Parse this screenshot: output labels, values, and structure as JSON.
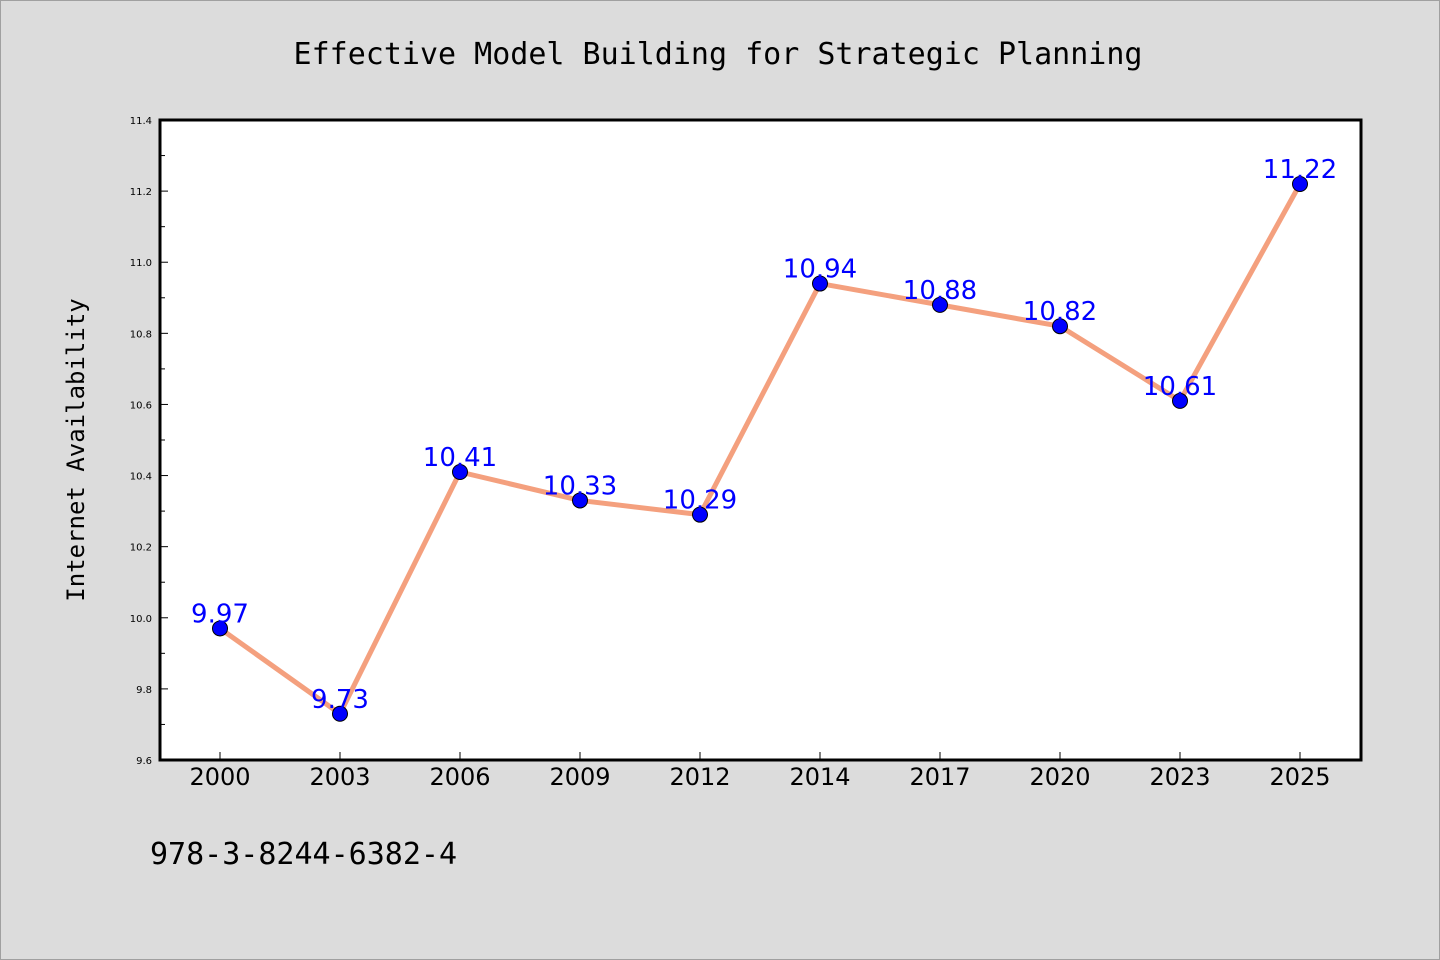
{
  "chart_data": {
    "type": "line",
    "title": "Effective Model Building for Strategic Planning",
    "xlabel": "",
    "ylabel": "Internet Availability",
    "categories": [
      "2000",
      "2003",
      "2006",
      "2009",
      "2012",
      "2014",
      "2017",
      "2020",
      "2023",
      "2025"
    ],
    "series": [
      {
        "values": [
          9.97,
          9.73,
          10.41,
          10.33,
          10.29,
          10.94,
          10.88,
          10.82,
          10.61,
          11.22
        ]
      }
    ],
    "data_labels": [
      "9.97",
      "9.73",
      "10.41",
      "10.33",
      "10.29",
      "10.94",
      "10.88",
      "10.82",
      "10.61",
      "11.22"
    ],
    "ylim": [
      9.6,
      11.4
    ],
    "yticks": [
      "9.6",
      "9.8",
      "10.0",
      "10.2",
      "10.4",
      "10.6",
      "10.8",
      "11.0",
      "11.2",
      "11.4"
    ],
    "grid": false,
    "legend": "none",
    "colors": {
      "line": "#f4a07e",
      "marker": "#0000ff",
      "label": "#0000ff",
      "background": "#dcdcdc",
      "plot_bg": "#ffffff"
    }
  },
  "footer": {
    "isbn": "978-3-8244-6382-4"
  }
}
